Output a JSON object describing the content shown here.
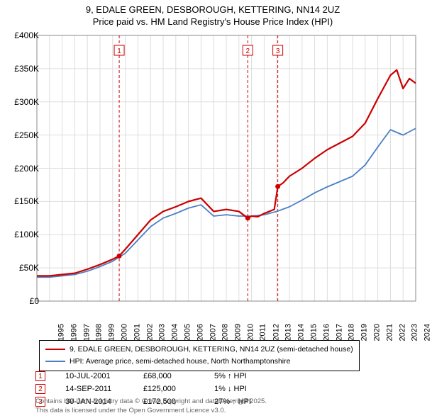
{
  "title": {
    "line1": "9, EDALE GREEN, DESBOROUGH, KETTERING, NN14 2UZ",
    "line2": "Price paid vs. HM Land Registry's House Price Index (HPI)",
    "fontsize": 13,
    "color": "#000000"
  },
  "chart": {
    "type": "line",
    "background_color": "#ffffff",
    "grid_color": "#dddddd",
    "plot_box_color": "#888888",
    "xlim": [
      1995,
      2025
    ],
    "ylim": [
      0,
      400000
    ],
    "ytick_step": 50000,
    "ytick_labels": [
      "£0",
      "£50K",
      "£100K",
      "£150K",
      "£200K",
      "£250K",
      "£300K",
      "£350K",
      "£400K"
    ],
    "xtick_step": 1,
    "xtick_labels": [
      "1995",
      "1996",
      "1997",
      "1998",
      "1999",
      "2000",
      "2001",
      "2002",
      "2003",
      "2004",
      "2005",
      "2006",
      "2007",
      "2008",
      "2009",
      "2010",
      "2011",
      "2012",
      "2013",
      "2014",
      "2015",
      "2016",
      "2017",
      "2018",
      "2019",
      "2020",
      "2021",
      "2022",
      "2023",
      "2024"
    ],
    "label_fontsize": 12,
    "series": [
      {
        "name": "price-paid",
        "label": "9, EDALE GREEN, DESBOROUGH, KETTERING, NN14 2UZ (semi-detached house)",
        "color": "#cc0000",
        "line_width": 2.2,
        "points": [
          [
            1995,
            38000
          ],
          [
            1996,
            38000
          ],
          [
            1997,
            40000
          ],
          [
            1998,
            42000
          ],
          [
            1999,
            48000
          ],
          [
            2000,
            55000
          ],
          [
            2001,
            63000
          ],
          [
            2001.52,
            68000
          ],
          [
            2002,
            78000
          ],
          [
            2003,
            100000
          ],
          [
            2004,
            122000
          ],
          [
            2005,
            135000
          ],
          [
            2006,
            142000
          ],
          [
            2007,
            150000
          ],
          [
            2008,
            155000
          ],
          [
            2009,
            135000
          ],
          [
            2010,
            138000
          ],
          [
            2011,
            135000
          ],
          [
            2011.7,
            125000
          ],
          [
            2012,
            128000
          ],
          [
            2012.5,
            127000
          ],
          [
            2013,
            132000
          ],
          [
            2013.8,
            138000
          ],
          [
            2014.08,
            172500
          ],
          [
            2014.5,
            178000
          ],
          [
            2015,
            188000
          ],
          [
            2016,
            200000
          ],
          [
            2017,
            215000
          ],
          [
            2018,
            228000
          ],
          [
            2019,
            238000
          ],
          [
            2020,
            248000
          ],
          [
            2021,
            268000
          ],
          [
            2022,
            305000
          ],
          [
            2023,
            340000
          ],
          [
            2023.5,
            348000
          ],
          [
            2024,
            320000
          ],
          [
            2024.5,
            335000
          ],
          [
            2025,
            328000
          ]
        ],
        "sale_markers": [
          {
            "x": 2001.52,
            "y": 68000
          },
          {
            "x": 2011.7,
            "y": 125000
          },
          {
            "x": 2014.08,
            "y": 172500
          }
        ]
      },
      {
        "name": "hpi",
        "label": "HPI: Average price, semi-detached house, North Northamptonshire",
        "color": "#4a7fc4",
        "line_width": 1.8,
        "points": [
          [
            1995,
            36000
          ],
          [
            1996,
            36000
          ],
          [
            1997,
            38000
          ],
          [
            1998,
            40000
          ],
          [
            1999,
            45000
          ],
          [
            2000,
            52000
          ],
          [
            2001,
            60000
          ],
          [
            2002,
            72000
          ],
          [
            2003,
            92000
          ],
          [
            2004,
            112000
          ],
          [
            2005,
            125000
          ],
          [
            2006,
            132000
          ],
          [
            2007,
            140000
          ],
          [
            2008,
            145000
          ],
          [
            2009,
            128000
          ],
          [
            2010,
            130000
          ],
          [
            2011,
            128000
          ],
          [
            2012,
            128000
          ],
          [
            2013,
            130000
          ],
          [
            2014,
            135000
          ],
          [
            2015,
            142000
          ],
          [
            2016,
            152000
          ],
          [
            2017,
            163000
          ],
          [
            2018,
            172000
          ],
          [
            2019,
            180000
          ],
          [
            2020,
            188000
          ],
          [
            2021,
            205000
          ],
          [
            2022,
            232000
          ],
          [
            2023,
            258000
          ],
          [
            2024,
            250000
          ],
          [
            2025,
            260000
          ]
        ]
      }
    ],
    "event_lines": [
      {
        "id": "1",
        "x": 2001.52,
        "color": "#cc0000",
        "dash": "4,3"
      },
      {
        "id": "2",
        "x": 2011.7,
        "color": "#cc0000",
        "dash": "4,3"
      },
      {
        "id": "3",
        "x": 2014.08,
        "color": "#cc0000",
        "dash": "4,3"
      }
    ],
    "event_label_box": {
      "border": "#cc0000",
      "text_color": "#cc0000",
      "bg": "#ffffff",
      "fontsize": 10
    }
  },
  "legend": {
    "border_color": "#000000",
    "fontsize": 10.5,
    "items": [
      {
        "color": "#cc0000",
        "label": "9, EDALE GREEN, DESBOROUGH, KETTERING, NN14 2UZ (semi-detached house)"
      },
      {
        "color": "#4a7fc4",
        "label": "HPI: Average price, semi-detached house, North Northamptonshire"
      }
    ]
  },
  "marker_table": {
    "fontsize": 11,
    "rows": [
      {
        "id": "1",
        "date": "10-JUL-2001",
        "price": "£68,000",
        "pct": "5% ↑ HPI"
      },
      {
        "id": "2",
        "date": "14-SEP-2011",
        "price": "£125,000",
        "pct": "1% ↓ HPI"
      },
      {
        "id": "3",
        "date": "30-JAN-2014",
        "price": "£172,500",
        "pct": "27% ↑ HPI"
      }
    ]
  },
  "footnote": {
    "line1": "Contains HM Land Registry data © Crown copyright and database right 2025.",
    "line2": "This data is licensed under the Open Government Licence v3.0.",
    "color": "#666666",
    "fontsize": 9.5
  }
}
